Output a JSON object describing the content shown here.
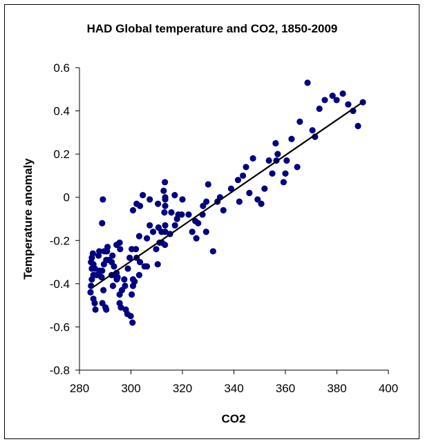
{
  "chart_data": {
    "type": "scatter",
    "title": "HAD Global temperature and CO2, 1850-2009",
    "xlabel": "CO2",
    "ylabel": "Temperature anomaly",
    "xlim": [
      280,
      400
    ],
    "ylim": [
      -0.8,
      0.6
    ],
    "xticks": [
      280,
      300,
      320,
      340,
      360,
      380,
      400
    ],
    "yticks": [
      0.6,
      0.4,
      0.2,
      0,
      -0.2,
      -0.4,
      -0.6,
      -0.8
    ],
    "xtick_labels": [
      "280",
      "300",
      "320",
      "340",
      "360",
      "380",
      "400"
    ],
    "ytick_labels": [
      "0.6",
      "0.4",
      "0.2",
      "0",
      "-0.2",
      "-0.4",
      "-0.6",
      "-0.8"
    ],
    "grid": false,
    "legend": "none",
    "marker_color": "#000080",
    "trendline_color": "#000000",
    "trendline": {
      "x": [
        284.8,
        390.0
      ],
      "y": [
        -0.42,
        0.44
      ]
    },
    "series": [
      {
        "name": "HAD Global temperature",
        "points": [
          [
            368.6,
            0.53
          ],
          [
            375.3,
            0.45
          ],
          [
            378.3,
            0.47
          ],
          [
            379.9,
            0.45
          ],
          [
            382.3,
            0.48
          ],
          [
            373.2,
            0.41
          ],
          [
            384.4,
            0.43
          ],
          [
            386.3,
            0.4
          ],
          [
            390.1,
            0.44
          ],
          [
            388.2,
            0.33
          ],
          [
            365.6,
            0.35
          ],
          [
            370.5,
            0.31
          ],
          [
            371.5,
            0.28
          ],
          [
            362.4,
            0.27
          ],
          [
            364.6,
            0.14
          ],
          [
            356.2,
            0.25
          ],
          [
            357.0,
            0.2
          ],
          [
            360.5,
            0.17
          ],
          [
            356.5,
            0.17
          ],
          [
            353.6,
            0.17
          ],
          [
            347.4,
            0.18
          ],
          [
            360.0,
            0.11
          ],
          [
            359.3,
            0.07
          ],
          [
            354.9,
            0.11
          ],
          [
            344.7,
            0.14
          ],
          [
            343.5,
            0.1
          ],
          [
            341.6,
            0.08
          ],
          [
            338.9,
            0.04
          ],
          [
            346.0,
            0.02
          ],
          [
            351.9,
            0.04
          ],
          [
            349.2,
            -0.01
          ],
          [
            350.6,
            -0.03
          ],
          [
            342.1,
            -0.02
          ],
          [
            335.9,
            -0.06
          ],
          [
            334.6,
            0.0
          ],
          [
            330.0,
            0.06
          ],
          [
            333.6,
            -0.02
          ],
          [
            329.3,
            -0.02
          ],
          [
            328.0,
            -0.04
          ],
          [
            313.2,
            0.07
          ],
          [
            317.0,
            0.01
          ],
          [
            320.0,
            -0.01
          ],
          [
            304.6,
            0.01
          ],
          [
            310.5,
            -0.03
          ],
          [
            307.3,
            -0.01
          ],
          [
            303.5,
            -0.04
          ],
          [
            300.8,
            -0.06
          ],
          [
            302.2,
            -0.03
          ],
          [
            312.7,
            0.03
          ],
          [
            313.3,
            0.0
          ],
          [
            313.3,
            -0.01
          ],
          [
            313.3,
            -0.04
          ],
          [
            318.4,
            -0.08
          ],
          [
            313.0,
            -0.07
          ],
          [
            315.7,
            -0.07
          ],
          [
            317.9,
            -0.1
          ],
          [
            319.7,
            -0.08
          ],
          [
            322.4,
            -0.08
          ],
          [
            325.0,
            -0.11
          ],
          [
            326.1,
            -0.12
          ],
          [
            323.8,
            -0.16
          ],
          [
            317.1,
            -0.13
          ],
          [
            307.3,
            -0.13
          ],
          [
            308.6,
            -0.16
          ],
          [
            310.7,
            -0.14
          ],
          [
            311.9,
            -0.16
          ],
          [
            315.2,
            -0.17
          ],
          [
            329.2,
            -0.16
          ],
          [
            313.3,
            -0.13
          ],
          [
            311.1,
            -0.21
          ],
          [
            313.3,
            -0.16
          ],
          [
            312.0,
            -0.21
          ],
          [
            313.2,
            -0.22
          ],
          [
            327.8,
            -0.08
          ],
          [
            325.4,
            -0.19
          ],
          [
            331.9,
            -0.25
          ],
          [
            303.2,
            -0.18
          ],
          [
            306.2,
            -0.19
          ],
          [
            295.6,
            -0.21
          ],
          [
            299.5,
            -0.28
          ],
          [
            301.9,
            -0.24
          ],
          [
            302.2,
            -0.28
          ],
          [
            305.3,
            -0.32
          ],
          [
            289.6,
            -0.25
          ],
          [
            300.3,
            -0.24
          ],
          [
            309.8,
            -0.24
          ],
          [
            303.5,
            -0.3
          ],
          [
            306.2,
            -0.32
          ],
          [
            310.4,
            -0.31
          ],
          [
            293.4,
            -0.32
          ],
          [
            287.5,
            -0.36
          ],
          [
            294.8,
            -0.37
          ],
          [
            297.4,
            -0.38
          ],
          [
            301.4,
            -0.39
          ],
          [
            303.2,
            -0.36
          ],
          [
            300.8,
            -0.38
          ],
          [
            290.4,
            -0.29
          ],
          [
            288.8,
            -0.34
          ],
          [
            294.4,
            -0.35
          ],
          [
            292.5,
            -0.36
          ],
          [
            289.3,
            -0.43
          ],
          [
            288.9,
            -0.49
          ],
          [
            290.1,
            -0.51
          ],
          [
            290.4,
            -0.52
          ],
          [
            295.6,
            -0.45
          ],
          [
            300.3,
            -0.45
          ],
          [
            295.6,
            -0.49
          ],
          [
            296.1,
            -0.51
          ],
          [
            298.0,
            -0.52
          ],
          [
            298.6,
            -0.54
          ],
          [
            299.9,
            -0.55
          ],
          [
            300.6,
            -0.58
          ],
          [
            294.5,
            -0.38
          ],
          [
            297.7,
            -0.41
          ],
          [
            296.5,
            -0.43
          ],
          [
            300.8,
            -0.41
          ],
          [
            293.0,
            -0.41
          ],
          [
            298.8,
            -0.33
          ],
          [
            293.6,
            -0.36
          ],
          [
            289.1,
            -0.01
          ],
          [
            288.8,
            -0.12
          ],
          [
            294.4,
            -0.22
          ],
          [
            295.8,
            -0.24
          ],
          [
            290.9,
            -0.23
          ],
          [
            290.4,
            -0.25
          ],
          [
            287.7,
            -0.25
          ],
          [
            287.4,
            -0.27
          ],
          [
            284.8,
            -0.28
          ],
          [
            292.8,
            -0.27
          ],
          [
            292.5,
            -0.3
          ],
          [
            285.4,
            -0.31
          ],
          [
            286.0,
            -0.33
          ],
          [
            289.5,
            -0.31
          ],
          [
            286.6,
            -0.36
          ],
          [
            285.2,
            -0.26
          ],
          [
            284.5,
            -0.3
          ],
          [
            284.8,
            -0.33
          ],
          [
            285.4,
            -0.36
          ],
          [
            284.8,
            -0.38
          ],
          [
            284.5,
            -0.41
          ],
          [
            284.3,
            -0.44
          ],
          [
            285.4,
            -0.47
          ],
          [
            285.9,
            -0.49
          ],
          [
            286.2,
            -0.52
          ],
          [
            290.7,
            -0.25
          ],
          [
            291.4,
            -0.29
          ],
          [
            288.6,
            -0.37
          ],
          [
            287.8,
            -0.34
          ]
        ]
      }
    ]
  }
}
